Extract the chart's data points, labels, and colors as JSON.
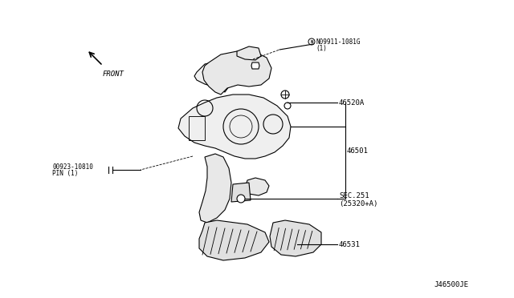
{
  "bg_color": "#ffffff",
  "title": "",
  "fig_width": 6.4,
  "fig_height": 3.72,
  "dpi": 100,
  "labels": {
    "part_number_top": "N09911-1081G",
    "part_number_top_sub": "(1)",
    "part_46520A": "46520A",
    "part_46501": "46501",
    "part_sec251": "SEC.251",
    "part_sec251_sub": "(25320+A)",
    "part_46531": "46531",
    "part_pin": "00923-10810",
    "part_pin_sub": "PIN (1)",
    "front_label": "FRONT",
    "diagram_code": "J46500JE"
  },
  "line_color": "#000000",
  "line_width": 0.8,
  "text_fontsize": 6.5,
  "small_fontsize": 5.5
}
